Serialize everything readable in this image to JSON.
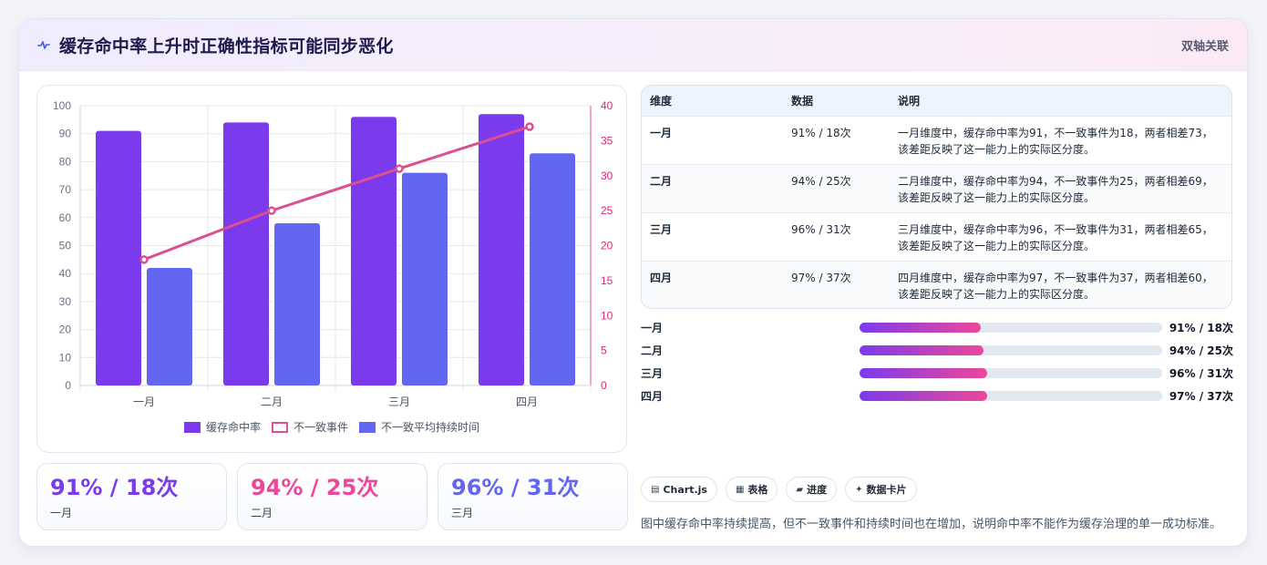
{
  "header": {
    "title": "缓存命中率上升时正确性指标可能同步恶化",
    "title_icon": "pulse-icon",
    "badge": "双轴关联"
  },
  "colors": {
    "purple": "#7c3aed",
    "pink": "#ec4899",
    "line": "#dc4f92",
    "indigo": "#6366f1"
  },
  "chart_data": {
    "type": "bar",
    "categories": [
      "一月",
      "二月",
      "三月",
      "四月"
    ],
    "series": [
      {
        "name": "缓存命中率",
        "type": "bar",
        "axis": "left",
        "color": "#7c3aed",
        "values": [
          91,
          94,
          96,
          97
        ]
      },
      {
        "name": "不一致事件",
        "type": "line",
        "axis": "right",
        "color": "#dc4f92",
        "values": [
          18,
          25,
          31,
          37
        ]
      },
      {
        "name": "不一致平均持续时间",
        "type": "bar",
        "axis": "left",
        "color": "#6366f1",
        "values": [
          42,
          58,
          76,
          83
        ]
      }
    ],
    "y_left": {
      "min": 0,
      "max": 100,
      "step": 10
    },
    "y_right": {
      "min": 0,
      "max": 40,
      "step": 5
    },
    "grid": true,
    "legend": "bottom"
  },
  "table": {
    "headers": [
      "维度",
      "数据",
      "说明"
    ],
    "rows": [
      {
        "dim": "一月",
        "data": "91% / 18次",
        "desc": "一月维度中，缓存命中率为91，不一致事件为18，两者相差73，该差距反映了这一能力上的实际区分度。"
      },
      {
        "dim": "二月",
        "data": "94% / 25次",
        "desc": "二月维度中，缓存命中率为94，不一致事件为25，两者相差69，该差距反映了这一能力上的实际区分度。"
      },
      {
        "dim": "三月",
        "data": "96% / 31次",
        "desc": "三月维度中，缓存命中率为96，不一致事件为31，两者相差65，该差距反映了这一能力上的实际区分度。"
      },
      {
        "dim": "四月",
        "data": "97% / 37次",
        "desc": "四月维度中，缓存命中率为97，不一致事件为37，两者相差60，该差距反映了这一能力上的实际区分度。"
      }
    ]
  },
  "progress": [
    {
      "label": "一月",
      "value": "91% / 18次",
      "fill_percent": 40
    },
    {
      "label": "二月",
      "value": "94% / 25次",
      "fill_percent": 41
    },
    {
      "label": "三月",
      "value": "96% / 31次",
      "fill_percent": 42
    },
    {
      "label": "四月",
      "value": "97% / 37次",
      "fill_percent": 42
    }
  ],
  "stats": [
    {
      "value": "91% / 18次",
      "label": "一月",
      "color": "#7c3aed"
    },
    {
      "value": "94% / 25次",
      "label": "二月",
      "color": "#ec4899"
    },
    {
      "value": "96% / 31次",
      "label": "三月",
      "color": "#6366f1"
    }
  ],
  "tags": [
    {
      "icon": "▤",
      "label": "Chart.js",
      "icon_name": "chart-icon"
    },
    {
      "icon": "▦",
      "label": "表格",
      "icon_name": "table-icon"
    },
    {
      "icon": "▰",
      "label": "进度",
      "icon_name": "progress-icon"
    },
    {
      "icon": "✦",
      "label": "数据卡片",
      "icon_name": "sparkle-icon"
    }
  ],
  "footnote": "图中缓存命中率持续提高，但不一致事件和持续时间也在增加，说明命中率不能作为缓存治理的单一成功标准。"
}
